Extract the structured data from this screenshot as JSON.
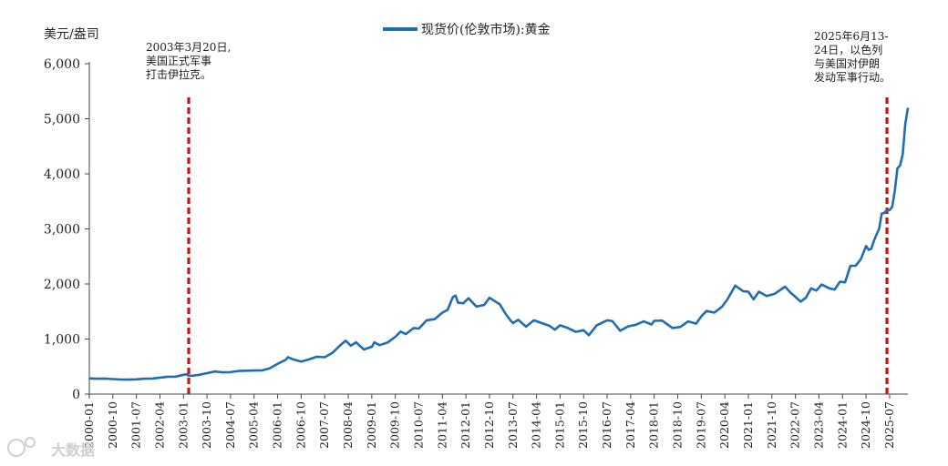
{
  "chart_data": {
    "type": "line",
    "ylabel": "美元/盎司",
    "yticks": [
      0,
      1000,
      2000,
      3000,
      4000,
      5000,
      6000
    ],
    "ytick_labels": [
      "0",
      "1,000",
      "2,000",
      "3,000",
      "4,000",
      "5,000",
      "6,000"
    ],
    "ylim": [
      0,
      6000
    ],
    "xlim": [
      "2000-01",
      "2026-02"
    ],
    "xtick_labels": [
      "2000-01",
      "2000-10",
      "2001-07",
      "2002-04",
      "2003-01",
      "2003-10",
      "2004-07",
      "2005-04",
      "2006-01",
      "2006-10",
      "2007-07",
      "2008-04",
      "2009-01",
      "2009-10",
      "2010-07",
      "2011-04",
      "2012-01",
      "2012-10",
      "2013-07",
      "2014-04",
      "2015-01",
      "2015-10",
      "2016-07",
      "2017-04",
      "2018-01",
      "2018-10",
      "2019-07",
      "2020-04",
      "2021-01",
      "2021-10",
      "2022-07",
      "2023-04",
      "2024-01",
      "2024-10",
      "2025-07"
    ],
    "legend": "top-center",
    "grid": false,
    "series": [
      {
        "name": "现货价(伦敦市场):黄金",
        "color": "#1f6db5",
        "points": [
          [
            "2000-01",
            285
          ],
          [
            "2000-04",
            280
          ],
          [
            "2000-07",
            283
          ],
          [
            "2000-10",
            272
          ],
          [
            "2001-01",
            265
          ],
          [
            "2001-04",
            262
          ],
          [
            "2001-07",
            268
          ],
          [
            "2001-10",
            280
          ],
          [
            "2002-01",
            282
          ],
          [
            "2002-04",
            300
          ],
          [
            "2002-07",
            315
          ],
          [
            "2002-10",
            317
          ],
          [
            "2003-01",
            350
          ],
          [
            "2003-02",
            360
          ],
          [
            "2003-03",
            335
          ],
          [
            "2003-04",
            330
          ],
          [
            "2003-07",
            350
          ],
          [
            "2003-10",
            380
          ],
          [
            "2004-01",
            410
          ],
          [
            "2004-04",
            395
          ],
          [
            "2004-07",
            398
          ],
          [
            "2004-10",
            420
          ],
          [
            "2005-01",
            425
          ],
          [
            "2005-04",
            428
          ],
          [
            "2005-07",
            430
          ],
          [
            "2005-10",
            470
          ],
          [
            "2006-01",
            550
          ],
          [
            "2006-04",
            620
          ],
          [
            "2006-05",
            670
          ],
          [
            "2006-07",
            630
          ],
          [
            "2006-10",
            590
          ],
          [
            "2007-01",
            630
          ],
          [
            "2007-04",
            680
          ],
          [
            "2007-07",
            670
          ],
          [
            "2007-10",
            750
          ],
          [
            "2008-01",
            890
          ],
          [
            "2008-03",
            970
          ],
          [
            "2008-05",
            880
          ],
          [
            "2008-07",
            940
          ],
          [
            "2008-10",
            810
          ],
          [
            "2009-01",
            860
          ],
          [
            "2009-02",
            940
          ],
          [
            "2009-04",
            890
          ],
          [
            "2009-07",
            935
          ],
          [
            "2009-10",
            1040
          ],
          [
            "2009-12",
            1135
          ],
          [
            "2010-02",
            1090
          ],
          [
            "2010-05",
            1200
          ],
          [
            "2010-07",
            1190
          ],
          [
            "2010-10",
            1340
          ],
          [
            "2011-01",
            1360
          ],
          [
            "2011-04",
            1480
          ],
          [
            "2011-06",
            1530
          ],
          [
            "2011-08",
            1760
          ],
          [
            "2011-09",
            1790
          ],
          [
            "2011-10",
            1660
          ],
          [
            "2011-12",
            1650
          ],
          [
            "2012-02",
            1740
          ],
          [
            "2012-05",
            1590
          ],
          [
            "2012-08",
            1620
          ],
          [
            "2012-10",
            1750
          ],
          [
            "2012-12",
            1690
          ],
          [
            "2013-02",
            1630
          ],
          [
            "2013-04",
            1470
          ],
          [
            "2013-06",
            1340
          ],
          [
            "2013-07",
            1290
          ],
          [
            "2013-09",
            1350
          ],
          [
            "2013-12",
            1225
          ],
          [
            "2014-03",
            1340
          ],
          [
            "2014-06",
            1290
          ],
          [
            "2014-09",
            1240
          ],
          [
            "2014-11",
            1170
          ],
          [
            "2015-01",
            1250
          ],
          [
            "2015-04",
            1200
          ],
          [
            "2015-07",
            1130
          ],
          [
            "2015-10",
            1160
          ],
          [
            "2015-12",
            1070
          ],
          [
            "2016-03",
            1250
          ],
          [
            "2016-07",
            1340
          ],
          [
            "2016-09",
            1325
          ],
          [
            "2016-12",
            1150
          ],
          [
            "2017-03",
            1230
          ],
          [
            "2017-06",
            1260
          ],
          [
            "2017-09",
            1320
          ],
          [
            "2017-12",
            1265
          ],
          [
            "2018-01",
            1330
          ],
          [
            "2018-04",
            1335
          ],
          [
            "2018-08",
            1200
          ],
          [
            "2018-11",
            1220
          ],
          [
            "2019-02",
            1320
          ],
          [
            "2019-05",
            1280
          ],
          [
            "2019-07",
            1410
          ],
          [
            "2019-09",
            1510
          ],
          [
            "2019-12",
            1480
          ],
          [
            "2020-03",
            1590
          ],
          [
            "2020-05",
            1720
          ],
          [
            "2020-08",
            1970
          ],
          [
            "2020-11",
            1870
          ],
          [
            "2021-01",
            1860
          ],
          [
            "2021-03",
            1720
          ],
          [
            "2021-05",
            1860
          ],
          [
            "2021-08",
            1780
          ],
          [
            "2021-11",
            1820
          ],
          [
            "2022-03",
            1950
          ],
          [
            "2022-05",
            1850
          ],
          [
            "2022-09",
            1680
          ],
          [
            "2022-11",
            1750
          ],
          [
            "2023-01",
            1920
          ],
          [
            "2023-03",
            1880
          ],
          [
            "2023-05",
            1990
          ],
          [
            "2023-08",
            1920
          ],
          [
            "2023-10",
            1900
          ],
          [
            "2023-12",
            2040
          ],
          [
            "2024-02",
            2030
          ],
          [
            "2024-04",
            2330
          ],
          [
            "2024-06",
            2330
          ],
          [
            "2024-08",
            2450
          ],
          [
            "2024-10",
            2690
          ],
          [
            "2024-11",
            2620
          ],
          [
            "2024-12",
            2640
          ],
          [
            "2025-01",
            2780
          ],
          [
            "2025-02",
            2900
          ],
          [
            "2025-03",
            3000
          ],
          [
            "2025-04",
            3280
          ],
          [
            "2025-05",
            3290
          ],
          [
            "2025-06",
            3350
          ],
          [
            "2025-07",
            3340
          ],
          [
            "2025-08",
            3400
          ],
          [
            "2025-09",
            3700
          ],
          [
            "2025-10",
            4100
          ],
          [
            "2025-11",
            4150
          ],
          [
            "2025-12",
            4350
          ],
          [
            "2026-01",
            4900
          ],
          [
            "2026-02",
            5200
          ]
        ]
      }
    ],
    "annotations": [
      {
        "name": "iraq-war",
        "x": "2003-03",
        "color": "#cc1111",
        "lines": [
          "2003年3月20日,",
          "美国正式军事",
          "打击伊拉克。"
        ]
      },
      {
        "name": "israel-iran",
        "x": "2025-06",
        "color": "#cc1111",
        "lines": [
          "2025年6月13-",
          "24日，以色列",
          "与美国对伊朗",
          "发动军事行动。"
        ]
      }
    ],
    "watermark": "大数据"
  }
}
